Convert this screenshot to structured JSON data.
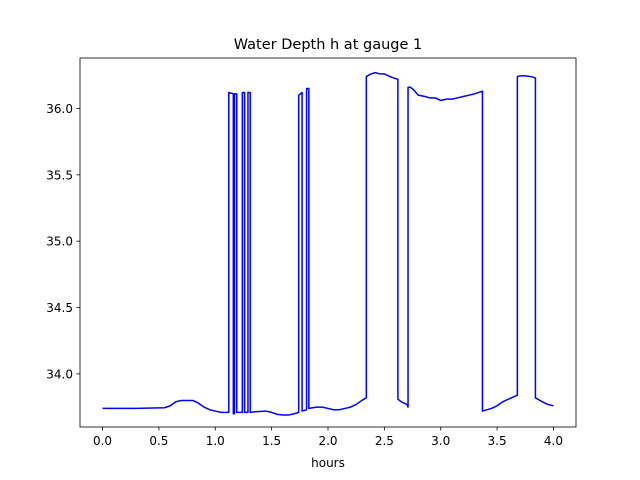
{
  "chart_data": {
    "type": "line",
    "title": "Water Depth h at gauge 1",
    "xlabel": "hours",
    "ylabel": "",
    "xlim": [
      -0.2,
      4.2
    ],
    "ylim": [
      33.6,
      36.38
    ],
    "xticks": [
      0.0,
      0.5,
      1.0,
      1.5,
      2.0,
      2.5,
      3.0,
      3.5,
      4.0
    ],
    "xtick_labels": [
      "0.0",
      "0.5",
      "1.0",
      "1.5",
      "2.0",
      "2.5",
      "3.0",
      "3.5",
      "4.0"
    ],
    "yticks": [
      34.0,
      34.5,
      35.0,
      35.5,
      36.0
    ],
    "ytick_labels": [
      "34.0",
      "34.5",
      "35.0",
      "35.5",
      "36.0"
    ],
    "grid": false,
    "colors": {
      "line": "#0000ff"
    },
    "series": [
      {
        "x": [
          0.0,
          0.3,
          0.55,
          0.6,
          0.65,
          0.7,
          0.75,
          0.8,
          0.85,
          0.9,
          0.95,
          1.0,
          1.05,
          1.12,
          1.12,
          1.16,
          1.16,
          1.17,
          1.17,
          1.19,
          1.19,
          1.24,
          1.24,
          1.26,
          1.26,
          1.29,
          1.29,
          1.31,
          1.31,
          1.35,
          1.45,
          1.5,
          1.55,
          1.6,
          1.65,
          1.7,
          1.74,
          1.74,
          1.77,
          1.77,
          1.81,
          1.81,
          1.83,
          1.83,
          1.9,
          1.95,
          2.0,
          2.05,
          2.1,
          2.15,
          2.2,
          2.25,
          2.3,
          2.34,
          2.34,
          2.38,
          2.42,
          2.46,
          2.5,
          2.55,
          2.58,
          2.62,
          2.62,
          2.65,
          2.7,
          2.71,
          2.71,
          2.73,
          2.76,
          2.8,
          2.86,
          2.9,
          2.95,
          3.0,
          3.05,
          3.1,
          3.15,
          3.2,
          3.25,
          3.3,
          3.37,
          3.37,
          3.45,
          3.5,
          3.55,
          3.6,
          3.68,
          3.68,
          3.7,
          3.72,
          3.75,
          3.8,
          3.84,
          3.84,
          3.9,
          3.95,
          4.0
        ],
        "y": [
          33.74,
          33.74,
          33.745,
          33.76,
          33.79,
          33.8,
          33.8,
          33.8,
          33.78,
          33.75,
          33.73,
          33.72,
          33.71,
          33.71,
          36.12,
          36.11,
          33.7,
          33.7,
          36.11,
          36.11,
          33.71,
          33.71,
          36.12,
          36.12,
          33.71,
          33.71,
          36.12,
          36.12,
          33.71,
          33.715,
          33.72,
          33.71,
          33.695,
          33.69,
          33.69,
          33.7,
          33.71,
          36.1,
          36.12,
          33.72,
          33.73,
          36.15,
          36.15,
          33.74,
          33.75,
          33.75,
          33.74,
          33.73,
          33.73,
          33.74,
          33.75,
          33.77,
          33.8,
          33.82,
          36.24,
          36.26,
          36.27,
          36.26,
          36.26,
          36.24,
          36.23,
          36.22,
          33.81,
          33.79,
          33.77,
          33.75,
          36.16,
          36.16,
          36.14,
          36.1,
          36.09,
          36.08,
          36.08,
          36.06,
          36.07,
          36.07,
          36.08,
          36.09,
          36.1,
          36.11,
          36.13,
          33.72,
          33.74,
          33.76,
          33.79,
          33.81,
          33.84,
          36.24,
          36.245,
          36.245,
          36.245,
          36.24,
          36.23,
          33.82,
          33.79,
          33.77,
          33.76
        ]
      }
    ]
  }
}
